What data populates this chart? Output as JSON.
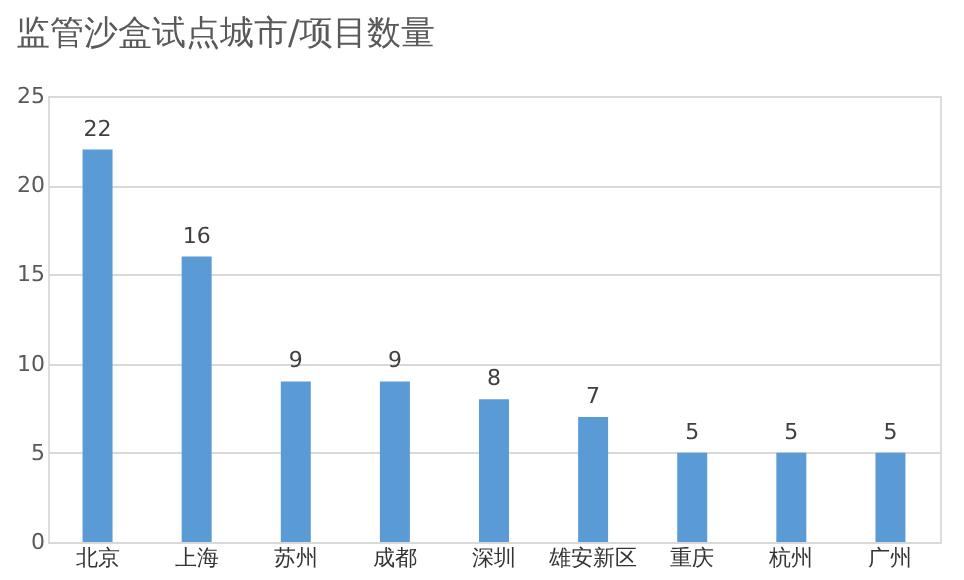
{
  "chart_data": {
    "type": "bar",
    "title": "监管沙盒试点城市/项目数量",
    "categories": [
      "北京",
      "上海",
      "苏州",
      "成都",
      "深圳",
      "雄安新区",
      "重庆",
      "杭州",
      "广州"
    ],
    "values": [
      22,
      16,
      9,
      9,
      8,
      7,
      5,
      5,
      5
    ],
    "color": "#5b9bd5",
    "ylim": [
      0,
      25
    ],
    "yticks": [
      0,
      5,
      10,
      15,
      20,
      25
    ],
    "grid": "y",
    "data_labels": true
  }
}
